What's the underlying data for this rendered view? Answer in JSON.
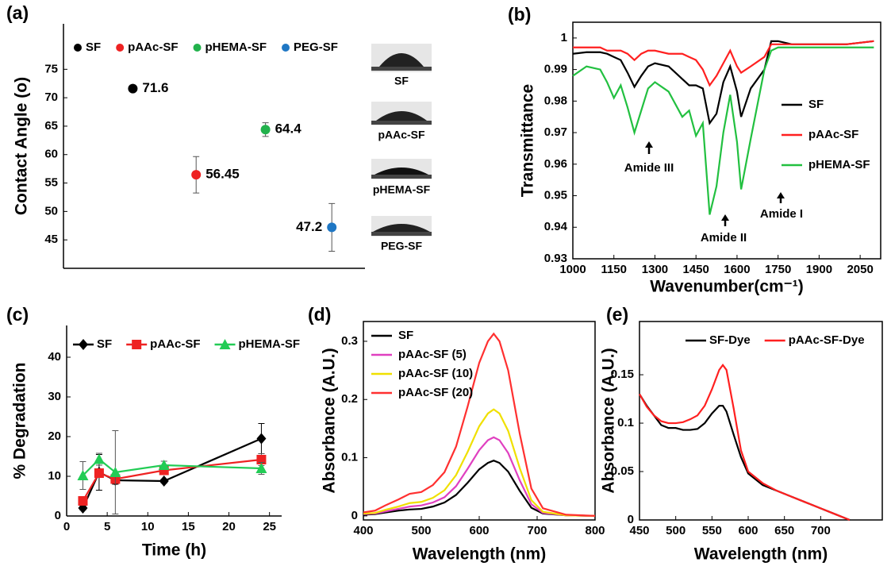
{
  "chart_data": [
    {
      "type": "dot",
      "title": "(a)",
      "ylabel": "Contact Angle (o)",
      "ylim": [
        40,
        83
      ],
      "yticks": [
        45,
        50,
        55,
        60,
        65,
        70,
        75
      ],
      "legend": "top",
      "series": [
        {
          "name": "SF",
          "color": "#000000",
          "values": [
            71.6
          ],
          "errors": [
            0.5
          ]
        },
        {
          "name": "pAAc-SF",
          "color": "#ee2222",
          "values": [
            56.45
          ],
          "errors": [
            3.2
          ]
        },
        {
          "name": "pHEMA-SF",
          "color": "#22b24c",
          "values": [
            64.4
          ],
          "errors": [
            1.2
          ]
        },
        {
          "name": "PEG-SF",
          "color": "#1f77c4",
          "values": [
            47.2
          ],
          "errors": [
            4.2
          ]
        }
      ],
      "image_labels": [
        "SF",
        "pAAc-SF",
        "pHEMA-SF",
        "PEG-SF"
      ]
    },
    {
      "type": "line",
      "title": "(b)",
      "xlabel": "Wavenumber(cm⁻¹)",
      "ylabel": "Transmittance",
      "legend": "right",
      "xlim": [
        1000,
        2125
      ],
      "xticks": [
        1000,
        1150,
        1300,
        1450,
        1600,
        1750,
        1900,
        2050
      ],
      "ylim": [
        0.93,
        1.005
      ],
      "yticks": [
        0.93,
        0.94,
        0.95,
        0.96,
        0.97,
        0.98,
        0.99,
        1
      ],
      "x": [
        1000,
        1050,
        1100,
        1125,
        1150,
        1175,
        1200,
        1225,
        1250,
        1275,
        1300,
        1350,
        1375,
        1400,
        1425,
        1450,
        1475,
        1500,
        1525,
        1550,
        1575,
        1600,
        1615,
        1650,
        1700,
        1725,
        1750,
        1800,
        1900,
        2000,
        2100
      ],
      "series": [
        {
          "name": "SF",
          "color": "#000000",
          "values": [
            0.995,
            0.9955,
            0.9955,
            0.995,
            0.994,
            0.993,
            0.989,
            0.9845,
            0.988,
            0.991,
            0.992,
            0.991,
            0.989,
            0.987,
            0.985,
            0.985,
            0.984,
            0.973,
            0.976,
            0.986,
            0.991,
            0.983,
            0.975,
            0.984,
            0.99,
            0.999,
            0.999,
            0.998,
            0.998,
            0.998,
            0.999
          ]
        },
        {
          "name": "pAAc-SF",
          "color": "#ff2020",
          "values": [
            0.997,
            0.997,
            0.997,
            0.996,
            0.996,
            0.996,
            0.995,
            0.993,
            0.995,
            0.996,
            0.996,
            0.995,
            0.995,
            0.995,
            0.994,
            0.993,
            0.99,
            0.985,
            0.988,
            0.992,
            0.996,
            0.991,
            0.989,
            0.991,
            0.994,
            0.998,
            0.998,
            0.998,
            0.998,
            0.998,
            0.999
          ]
        },
        {
          "name": "pHEMA-SF",
          "color": "#22c040",
          "values": [
            0.988,
            0.991,
            0.99,
            0.986,
            0.981,
            0.985,
            0.978,
            0.97,
            0.977,
            0.984,
            0.986,
            0.983,
            0.979,
            0.975,
            0.977,
            0.969,
            0.973,
            0.944,
            0.953,
            0.97,
            0.982,
            0.967,
            0.952,
            0.968,
            0.99,
            0.996,
            0.997,
            0.997,
            0.997,
            0.997,
            0.997
          ]
        }
      ],
      "annotations": [
        "Amide III",
        "Amide II",
        "Amide I"
      ]
    },
    {
      "type": "line",
      "title": "(c)",
      "xlabel": "Time (h)",
      "ylabel": "% Degradation",
      "legend": "top",
      "xlim": [
        0,
        26.5
      ],
      "xticks": [
        0,
        5,
        10,
        15,
        20,
        25
      ],
      "ylim": [
        0,
        48
      ],
      "yticks": [
        0,
        10,
        20,
        30,
        40
      ],
      "x": [
        2,
        4,
        6,
        12,
        24
      ],
      "series": [
        {
          "name": "SF",
          "color": "#000000",
          "marker": "diamond",
          "values": [
            2,
            11,
            9,
            8.8,
            19.5
          ],
          "errors": [
            0.5,
            4.5,
            1,
            0.5,
            3.8
          ]
        },
        {
          "name": "pAAc-SF",
          "color": "#ee2222",
          "marker": "square",
          "values": [
            3.8,
            10.8,
            9.3,
            11.5,
            14.2
          ],
          "errors": [
            1,
            1,
            0.8,
            1,
            1.5
          ]
        },
        {
          "name": "pHEMA-SF",
          "color": "#22cc55",
          "marker": "triangle",
          "values": [
            10.2,
            14.3,
            11,
            12.8,
            12
          ],
          "errors": [
            3.5,
            1.5,
            10.5,
            1,
            1.5
          ]
        }
      ]
    },
    {
      "type": "line",
      "title": "(d)",
      "xlabel": "Wavelength (nm)",
      "ylabel": "Absorbance (A.U.)",
      "legend": "top-left",
      "xlim": [
        400,
        800
      ],
      "xticks": [
        400,
        500,
        600,
        700,
        800
      ],
      "ylim": [
        -0.007,
        0.334
      ],
      "yticks": [
        0,
        0.1,
        0.2,
        0.3
      ],
      "x": [
        400,
        420,
        440,
        460,
        480,
        500,
        520,
        540,
        560,
        580,
        600,
        615,
        625,
        635,
        650,
        670,
        690,
        710,
        750,
        800
      ],
      "series": [
        {
          "name": "SF",
          "color": "#000000",
          "values": [
            0.002,
            0.003,
            0.006,
            0.009,
            0.011,
            0.012,
            0.016,
            0.023,
            0.036,
            0.057,
            0.08,
            0.091,
            0.095,
            0.091,
            0.076,
            0.043,
            0.014,
            0.004,
            0.001,
            0
          ]
        },
        {
          "name": "pAAc-SF (5)",
          "color": "#e040c0",
          "values": [
            0.003,
            0.004,
            0.008,
            0.012,
            0.016,
            0.018,
            0.023,
            0.032,
            0.051,
            0.081,
            0.113,
            0.13,
            0.135,
            0.13,
            0.108,
            0.061,
            0.02,
            0.005,
            0.001,
            0
          ]
        },
        {
          "name": "pAAc-SF (10)",
          "color": "#f0e000",
          "values": [
            0.004,
            0.005,
            0.011,
            0.016,
            0.022,
            0.024,
            0.031,
            0.044,
            0.07,
            0.11,
            0.154,
            0.176,
            0.183,
            0.176,
            0.146,
            0.082,
            0.027,
            0.007,
            0.001,
            0
          ]
        },
        {
          "name": "pAAc-SF (20)",
          "color": "#ff3030",
          "values": [
            0.006,
            0.009,
            0.019,
            0.028,
            0.038,
            0.041,
            0.053,
            0.075,
            0.119,
            0.188,
            0.263,
            0.3,
            0.313,
            0.3,
            0.25,
            0.141,
            0.047,
            0.013,
            0.002,
            0
          ]
        }
      ]
    },
    {
      "type": "line",
      "title": "(e)",
      "xlabel": "Wavelength (nm)",
      "ylabel": "Absorbance (A.U.)",
      "legend": "top",
      "xlim": [
        450,
        785
      ],
      "xticks": [
        450,
        500,
        550,
        600,
        650,
        700
      ],
      "ylim": [
        0,
        0.205
      ],
      "yticks": [
        0,
        0.05,
        0.1,
        0.15
      ],
      "x": [
        450,
        460,
        470,
        480,
        490,
        500,
        510,
        520,
        530,
        540,
        550,
        560,
        565,
        570,
        580,
        590,
        600,
        620,
        640,
        660,
        680,
        700,
        720,
        740
      ],
      "series": [
        {
          "name": "SF-Dye",
          "color": "#000000",
          "values": [
            0.13,
            0.118,
            0.108,
            0.098,
            0.095,
            0.095,
            0.093,
            0.093,
            0.094,
            0.1,
            0.11,
            0.118,
            0.118,
            0.112,
            0.088,
            0.065,
            0.048,
            0.036,
            0.03,
            0.024,
            0.018,
            0.012,
            0.006,
            0
          ]
        },
        {
          "name": "pAAc-SF-Dye",
          "color": "#ff2020",
          "values": [
            0.13,
            0.117,
            0.108,
            0.102,
            0.1,
            0.1,
            0.101,
            0.104,
            0.108,
            0.118,
            0.135,
            0.155,
            0.16,
            0.155,
            0.115,
            0.072,
            0.05,
            0.038,
            0.03,
            0.024,
            0.018,
            0.012,
            0.006,
            0
          ]
        }
      ]
    }
  ]
}
